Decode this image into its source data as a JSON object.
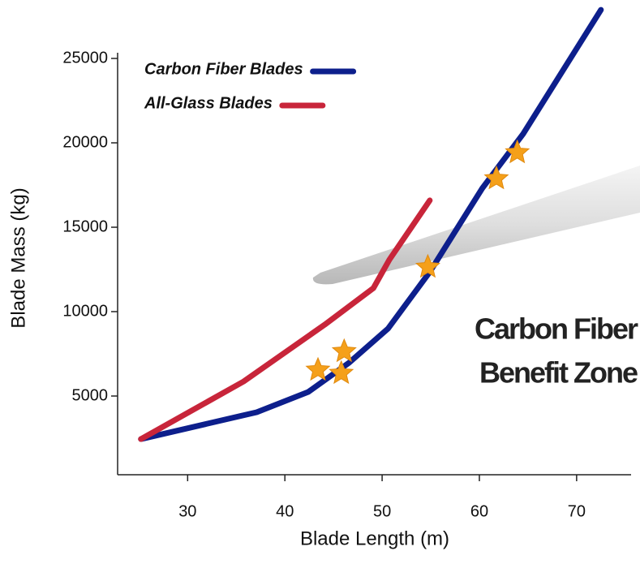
{
  "chart_data": {
    "type": "line",
    "x_label": "Blade Length (m)",
    "y_label": "Blade Mass (kg)",
    "annotation": [
      "Carbon Fiber",
      "Benefit Zone"
    ],
    "xlim": [
      22.8,
      75.6
    ],
    "ylim": [
      337,
      25337
    ],
    "xticks": [
      30,
      40,
      50,
      60,
      70
    ],
    "yticks": [
      5000,
      10000,
      15000,
      20000,
      25000
    ],
    "series": [
      {
        "name": "Carbon Fiber Blades",
        "color": "#0d1f8c",
        "x": [
          25.2,
          37.1,
          42.4,
          46.6,
          50.6,
          54.9,
          60.3,
          64.5,
          72.5
        ],
        "values": [
          2450,
          4040,
          5240,
          6970,
          8990,
          12350,
          17310,
          20530,
          27880
        ]
      },
      {
        "name": "All-Glass Blades",
        "color": "#c8253a",
        "x": [
          25.2,
          35.75,
          44.1,
          49.1,
          50.75,
          54.9
        ],
        "values": [
          2450,
          5860,
          9230,
          11390,
          13080,
          16590
        ]
      }
    ],
    "markers": {
      "color": "#f5a01a",
      "x": [
        43.4,
        46.1,
        45.8,
        54.7,
        61.75,
        63.9
      ],
      "values": [
        6540,
        7640,
        6350,
        12640,
        17880,
        19420
      ]
    }
  }
}
